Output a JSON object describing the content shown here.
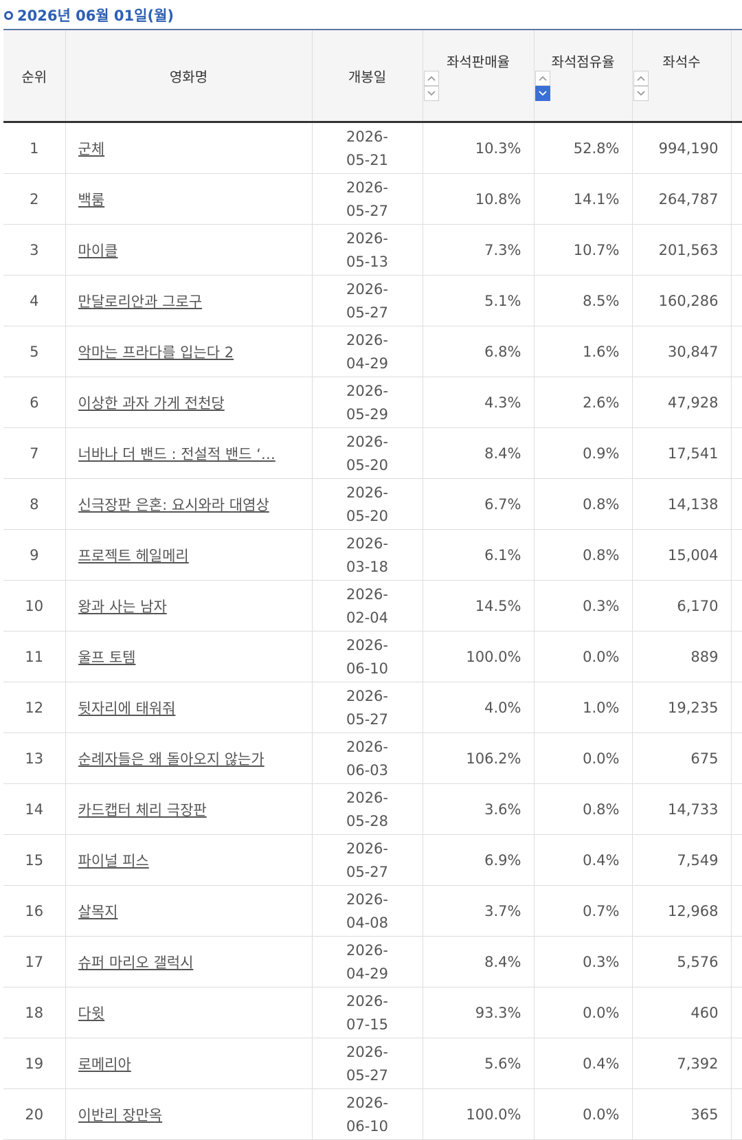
{
  "header": {
    "title": "2026년 06월 01일(월)"
  },
  "table": {
    "columns": [
      "순위",
      "영화명",
      "개봉일",
      "좌석판매율",
      "좌석점유율",
      "좌석수"
    ],
    "rows": [
      [
        "1",
        "군체",
        "2026-05-21",
        "10.3%",
        "52.8%",
        "994,190"
      ],
      [
        "2",
        "백룸",
        "2026-05-27",
        "10.8%",
        "14.1%",
        "264,787"
      ],
      [
        "3",
        "마이클",
        "2026-05-13",
        "7.3%",
        "10.7%",
        "201,563"
      ],
      [
        "4",
        "만달로리안과 그로구",
        "2026-05-27",
        "5.1%",
        "8.5%",
        "160,286"
      ],
      [
        "5",
        "악마는 프라다를 입는다 2",
        "2026-04-29",
        "6.8%",
        "1.6%",
        "30,847"
      ],
      [
        "6",
        "이상한 과자 가게 전천당",
        "2026-05-29",
        "4.3%",
        "2.6%",
        "47,928"
      ],
      [
        "7",
        "너바나 더 밴드 : 전설적 밴드 ‘…",
        "2026-05-20",
        "8.4%",
        "0.9%",
        "17,541"
      ],
      [
        "8",
        "신극장판 은혼: 요시와라 대염상",
        "2026-05-20",
        "6.7%",
        "0.8%",
        "14,138"
      ],
      [
        "9",
        "프로젝트 헤일메리",
        "2026-03-18",
        "6.1%",
        "0.8%",
        "15,004"
      ],
      [
        "10",
        "왕과 사는 남자",
        "2026-02-04",
        "14.5%",
        "0.3%",
        "6,170"
      ],
      [
        "11",
        "울프 토템",
        "2026-06-10",
        "100.0%",
        "0.0%",
        "889"
      ],
      [
        "12",
        "뒷자리에 태워줘",
        "2026-05-27",
        "4.0%",
        "1.0%",
        "19,235"
      ],
      [
        "13",
        "순례자들은 왜 돌아오지 않는가",
        "2026-06-03",
        "106.2%",
        "0.0%",
        "675"
      ],
      [
        "14",
        "카드캡터 체리 극장판",
        "2026-05-28",
        "3.6%",
        "0.8%",
        "14,733"
      ],
      [
        "15",
        "파이널 피스",
        "2026-05-27",
        "6.9%",
        "0.4%",
        "7,549"
      ],
      [
        "16",
        "살목지",
        "2026-04-08",
        "3.7%",
        "0.7%",
        "12,968"
      ],
      [
        "17",
        "슈퍼 마리오 갤럭시",
        "2026-04-29",
        "8.4%",
        "0.3%",
        "5,576"
      ],
      [
        "18",
        "다윗",
        "2026-07-15",
        "93.3%",
        "0.0%",
        "460"
      ],
      [
        "19",
        "로메리아",
        "2026-05-27",
        "5.6%",
        "0.4%",
        "7,392"
      ],
      [
        "20",
        "이반리 장만옥",
        "2026-06-10",
        "100.0%",
        "0.0%",
        "365"
      ]
    ]
  }
}
